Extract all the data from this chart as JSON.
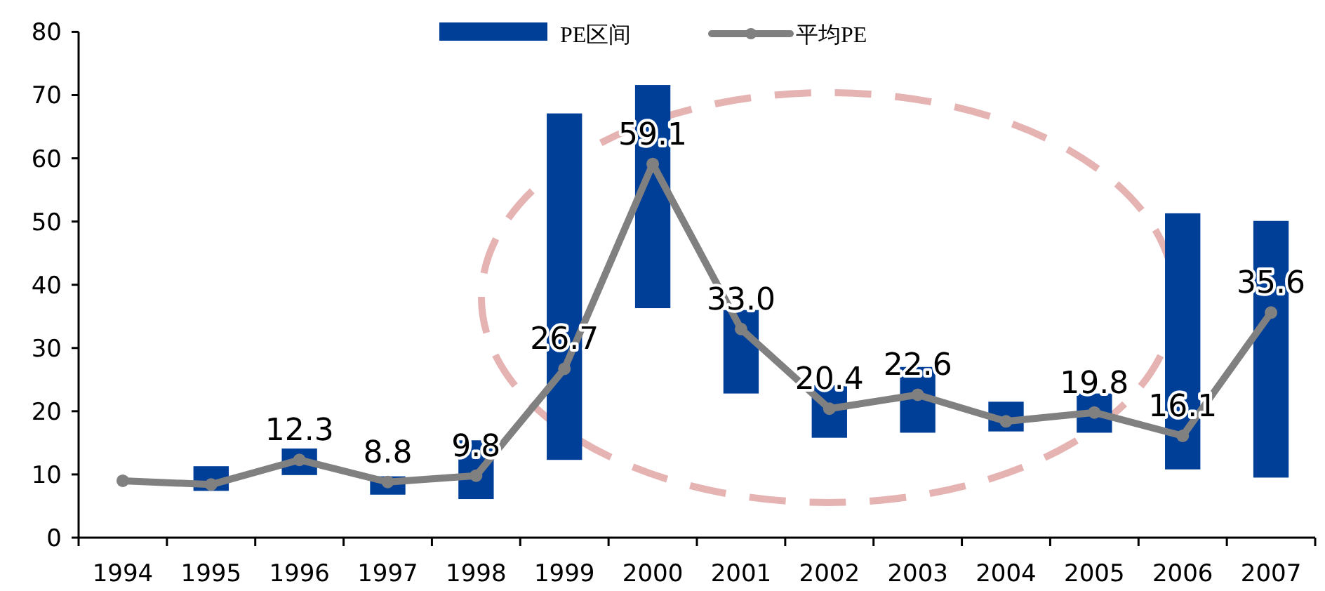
{
  "chart_data": {
    "type": "bar",
    "categories": [
      "1994",
      "1995",
      "1996",
      "1997",
      "1998",
      "1999",
      "2000",
      "2001",
      "2002",
      "2003",
      "2004",
      "2005",
      "2006",
      "2007"
    ],
    "series": [
      {
        "name": "PE区间",
        "color": "#003f98",
        "base": [
          null,
          7.4,
          9.9,
          6.8,
          6.1,
          12.3,
          36.3,
          22.8,
          15.8,
          16.6,
          16.8,
          16.6,
          10.8,
          9.5
        ],
        "values": [
          null,
          3.9,
          4.2,
          2.9,
          9.3,
          54.8,
          35.3,
          13.2,
          8.3,
          10.4,
          4.7,
          6.2,
          40.5,
          40.6
        ]
      },
      {
        "type": "line",
        "name": "平均PE",
        "color": "#808080",
        "marker": "circle",
        "values": [
          9.0,
          8.4,
          12.3,
          8.8,
          9.8,
          26.7,
          59.1,
          33.0,
          20.4,
          22.6,
          18.4,
          19.8,
          16.1,
          35.6
        ],
        "value_labels": [
          null,
          null,
          "12.3",
          "8.8",
          "9.8",
          "26.7",
          "59.1",
          "33.0",
          "20.4",
          "22.6",
          null,
          "19.8",
          "16.1",
          "35.6"
        ]
      }
    ],
    "ylim": [
      0,
      80
    ],
    "yticks": [
      0,
      10,
      20,
      30,
      40,
      50,
      60,
      70,
      80
    ],
    "grid": false,
    "legend": "top"
  }
}
